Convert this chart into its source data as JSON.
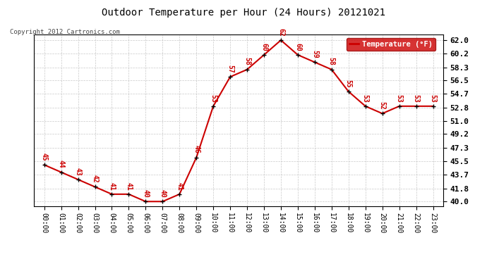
{
  "title": "Outdoor Temperature per Hour (24 Hours) 20121021",
  "copyright_text": "Copyright 2012 Cartronics.com",
  "legend_label": "Temperature (°F)",
  "hours": [
    0,
    1,
    2,
    3,
    4,
    5,
    6,
    7,
    8,
    9,
    10,
    11,
    12,
    13,
    14,
    15,
    16,
    17,
    18,
    19,
    20,
    21,
    22,
    23
  ],
  "temps": [
    45,
    44,
    43,
    42,
    41,
    41,
    40,
    40,
    41,
    46,
    53,
    57,
    58,
    60,
    62,
    60,
    59,
    58,
    55,
    53,
    52,
    53,
    53,
    53
  ],
  "yticks": [
    40.0,
    41.8,
    43.7,
    45.5,
    47.3,
    49.2,
    51.0,
    52.8,
    54.7,
    56.5,
    58.3,
    60.2,
    62.0
  ],
  "ylim": [
    39.4,
    62.8
  ],
  "xlim": [
    -0.6,
    23.6
  ],
  "line_color": "#cc0000",
  "label_color": "#cc0000",
  "bg_color": "#ffffff",
  "grid_color": "#bbbbbb",
  "title_color": "#000000",
  "legend_bg": "#cc0000",
  "legend_text_color": "#ffffff",
  "copyright_color": "#444444"
}
